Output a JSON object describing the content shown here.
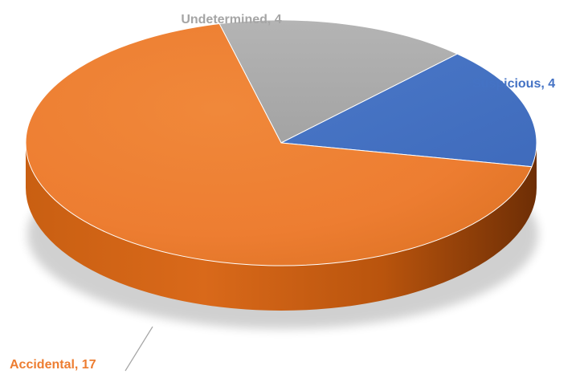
{
  "chart_data": {
    "type": "pie",
    "title": "",
    "style": "3d-tilted",
    "slices": [
      {
        "label": "Undetermined",
        "value": 4,
        "text": "Undetermined, 4",
        "color": "#a5a5a5"
      },
      {
        "label": "Suspicious",
        "value": 4,
        "text": "Suspicious, 4",
        "color": "#4472c4"
      },
      {
        "label": "Accidental",
        "value": 17,
        "text": "Accidental, 17",
        "color": "#ed7d31"
      }
    ],
    "label_colors": {
      "Undetermined": "#a5a5a5",
      "Suspicious": "#4472c4",
      "Accidental": "#ed7d31"
    }
  }
}
